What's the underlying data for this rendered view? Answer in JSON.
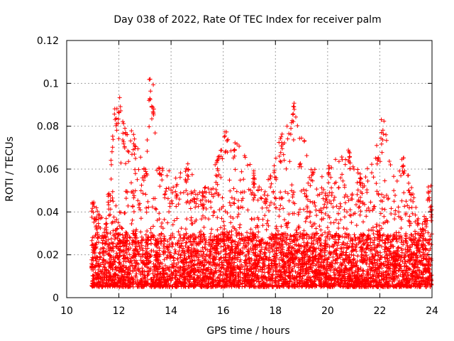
{
  "chart_data": {
    "type": "scatter",
    "title": "Day 038 of 2022, Rate Of TEC Index for receiver palm",
    "xlabel": "GPS time / hours",
    "ylabel": "ROTI / TECUs",
    "xlim": [
      10,
      24
    ],
    "ylim": [
      0,
      0.12
    ],
    "xticks": [
      10,
      12,
      14,
      16,
      18,
      20,
      22,
      24
    ],
    "xtick_labels": [
      "10",
      "12",
      "14",
      "16",
      "18",
      "20",
      "22",
      "24"
    ],
    "yticks": [
      0,
      0.02,
      0.04,
      0.06,
      0.08,
      0.1,
      0.12
    ],
    "ytick_labels": [
      "0",
      "0.02",
      "0.04",
      "0.06",
      "0.08",
      "0.1",
      "0.12"
    ],
    "grid": true,
    "marker": "plus",
    "color": "#ff0000",
    "x_range_of_points": [
      10.95,
      24.0
    ],
    "series": [
      {
        "name": "ROTI",
        "envelope_peaks": [
          {
            "x": 11.0,
            "y": 0.045
          },
          {
            "x": 11.5,
            "y": 0.035
          },
          {
            "x": 11.85,
            "y": 0.09
          },
          {
            "x": 12.0,
            "y": 0.095
          },
          {
            "x": 12.2,
            "y": 0.082
          },
          {
            "x": 12.6,
            "y": 0.078
          },
          {
            "x": 13.0,
            "y": 0.064
          },
          {
            "x": 13.2,
            "y": 0.103
          },
          {
            "x": 13.3,
            "y": 0.1
          },
          {
            "x": 13.6,
            "y": 0.064
          },
          {
            "x": 14.2,
            "y": 0.056
          },
          {
            "x": 14.6,
            "y": 0.063
          },
          {
            "x": 15.2,
            "y": 0.05
          },
          {
            "x": 15.8,
            "y": 0.066
          },
          {
            "x": 16.1,
            "y": 0.079
          },
          {
            "x": 16.4,
            "y": 0.075
          },
          {
            "x": 17.2,
            "y": 0.06
          },
          {
            "x": 17.6,
            "y": 0.05
          },
          {
            "x": 18.2,
            "y": 0.077
          },
          {
            "x": 18.7,
            "y": 0.091
          },
          {
            "x": 19.4,
            "y": 0.061
          },
          {
            "x": 20.0,
            "y": 0.062
          },
          {
            "x": 20.8,
            "y": 0.069
          },
          {
            "x": 21.3,
            "y": 0.057
          },
          {
            "x": 21.9,
            "y": 0.072
          },
          {
            "x": 22.1,
            "y": 0.084
          },
          {
            "x": 22.9,
            "y": 0.068
          },
          {
            "x": 23.6,
            "y": 0.032
          },
          {
            "x": 23.9,
            "y": 0.053
          },
          {
            "x": 24.0,
            "y": 0.045
          }
        ],
        "typical_floor": 0.005,
        "dense_band": [
          0.005,
          0.03
        ]
      }
    ]
  }
}
